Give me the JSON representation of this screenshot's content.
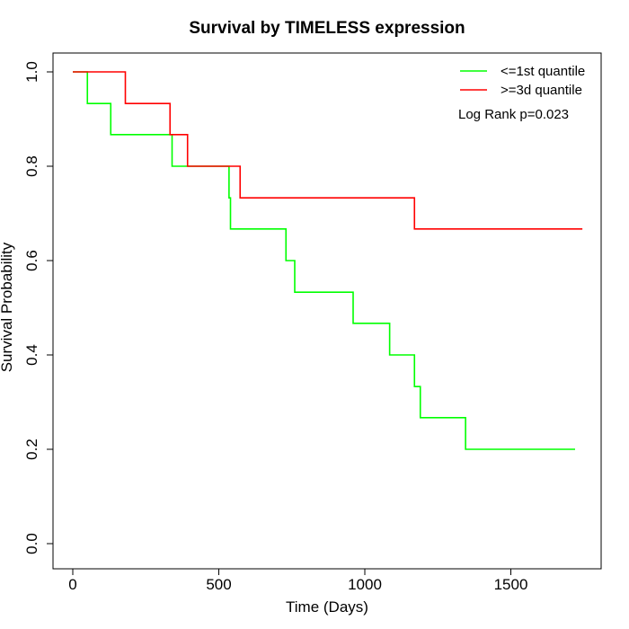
{
  "chart_data": {
    "type": "line",
    "title": "Survival by TIMELESS expression",
    "xlabel": "Time (Days)",
    "ylabel": "Survival Probability",
    "xlim": [
      0,
      1800
    ],
    "ylim": [
      0,
      1.0
    ],
    "xticks": [
      0,
      500,
      1000,
      1500
    ],
    "xtick_labels": [
      "0",
      "500",
      "1000",
      "1500"
    ],
    "yticks": [
      0.0,
      0.2,
      0.4,
      0.6,
      0.8,
      1.0
    ],
    "ytick_labels": [
      "0.0",
      "0.2",
      "0.4",
      "0.6",
      "0.8",
      "1.0"
    ],
    "grid": false,
    "legend_position": "top-right",
    "annotation": "Log Rank p=0.023",
    "series": [
      {
        "name": "<=1st quantile",
        "color": "#00ff00",
        "step": "post",
        "x": [
          0,
          50,
          130,
          340,
          535,
          540,
          730,
          760,
          960,
          1085,
          1170,
          1190,
          1345,
          1720
        ],
        "y": [
          1.0,
          0.933,
          0.867,
          0.8,
          0.733,
          0.667,
          0.6,
          0.533,
          0.467,
          0.4,
          0.333,
          0.267,
          0.2,
          0.2
        ]
      },
      {
        "name": ">=3d quantile",
        "color": "#ff0000",
        "step": "post",
        "x": [
          0,
          180,
          333,
          393,
          573,
          1170,
          1745
        ],
        "y": [
          1.0,
          0.933,
          0.867,
          0.8,
          0.733,
          0.667,
          0.667
        ]
      }
    ]
  }
}
